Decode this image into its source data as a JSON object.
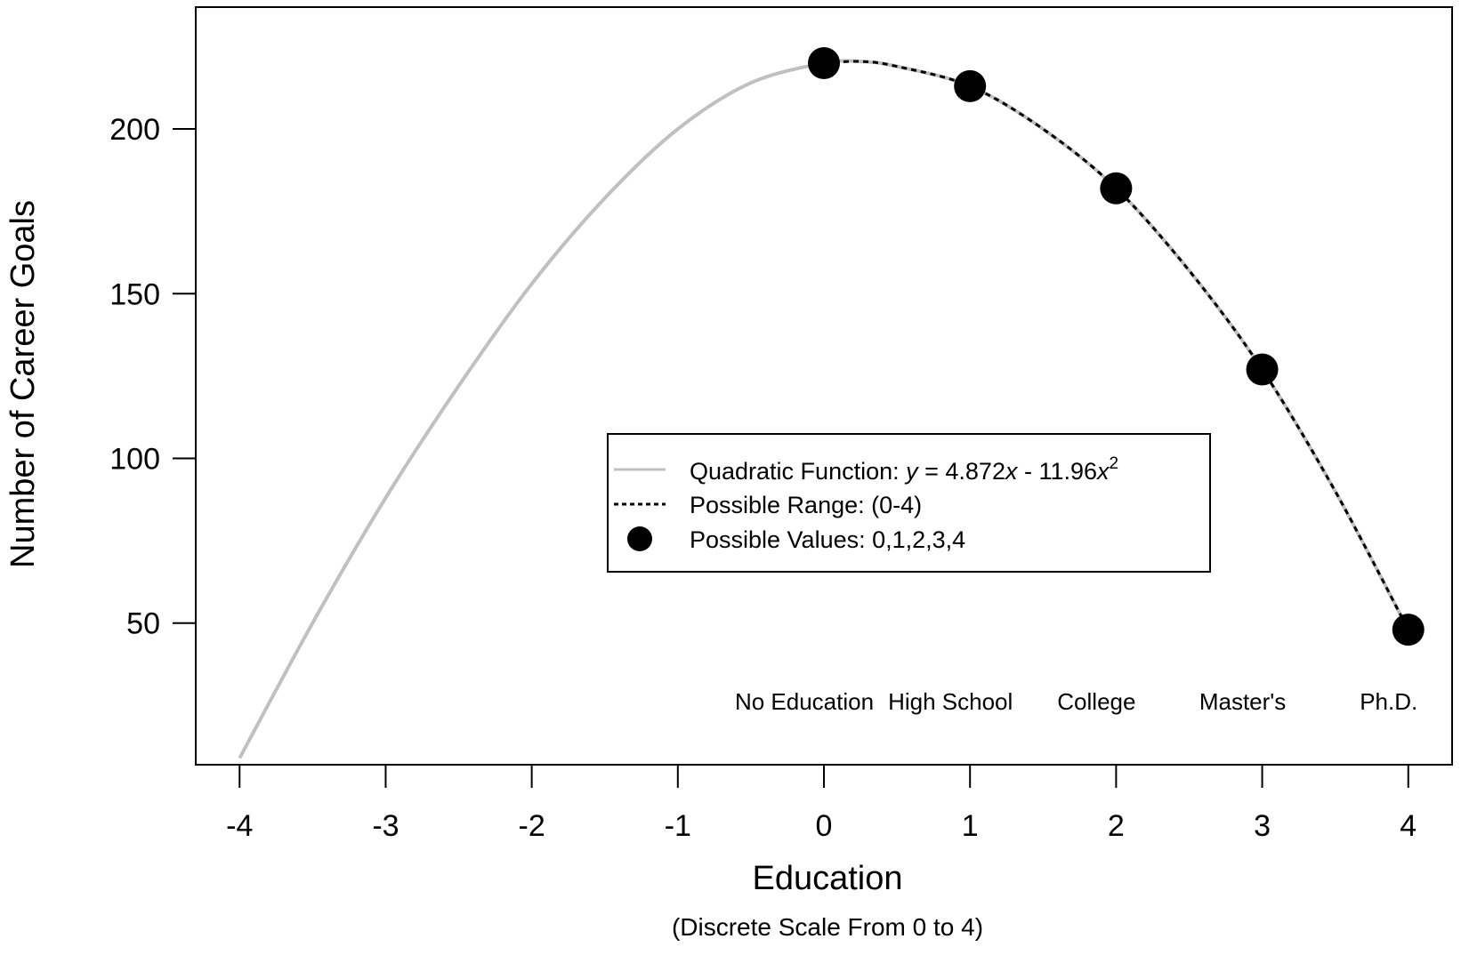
{
  "chart_data": {
    "type": "line",
    "xlabel": "Education",
    "xlabel_sub": "(Discrete Scale From 0 to 4)",
    "ylabel": "Number of Career Goals",
    "xlim": [
      -4.3,
      4.3
    ],
    "ylim": [
      7,
      237
    ],
    "x_ticks": [
      -4,
      -3,
      -2,
      -1,
      0,
      1,
      2,
      3,
      4
    ],
    "y_ticks": [
      50,
      100,
      150,
      200
    ],
    "grid": false,
    "legend_position": "center-right",
    "curve": {
      "x": [
        -4.0,
        -3.5,
        -3.0,
        -2.5,
        -2.0,
        -1.5,
        -1.0,
        -0.5,
        0.0,
        0.25,
        0.5,
        1.0,
        1.5,
        2.0,
        2.5,
        3.0,
        3.5,
        4.0
      ],
      "y": [
        9,
        50,
        88,
        122,
        153,
        179,
        200,
        214,
        220,
        220.5,
        219,
        213,
        200,
        182,
        157,
        127,
        90,
        48
      ]
    },
    "range_x": [
      0,
      4
    ],
    "points": {
      "x": [
        0,
        1,
        2,
        3,
        4
      ],
      "y": [
        220,
        213,
        182,
        127,
        48
      ]
    },
    "category_labels": [
      "No Education",
      "High School",
      "College",
      "Master's",
      "Ph.D."
    ],
    "legend": {
      "quadratic_prefix": "Quadratic Function: ",
      "quadratic_y": "y",
      "quadratic_mid": " = 4.872",
      "quadratic_x1": "x",
      "quadratic_minus": " - 11.96",
      "quadratic_x2": "x",
      "quadratic_exp": "2",
      "range_label": "Possible Range: (0-4)",
      "values_label": "Possible Values: 0,1,2,3,4"
    },
    "colors": {
      "curve": "#c0c0c0",
      "range_dash": "#000000",
      "points": "#000000"
    }
  }
}
